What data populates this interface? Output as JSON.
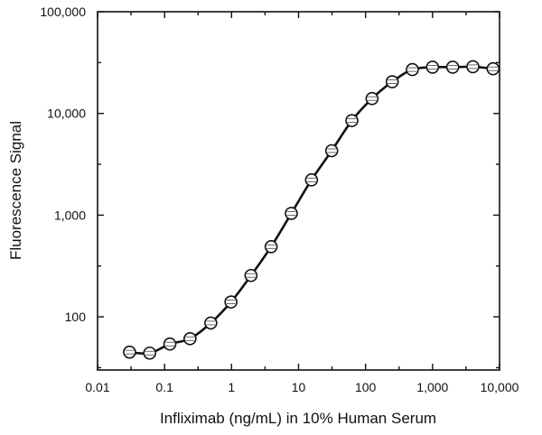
{
  "chart_data": {
    "type": "scatter",
    "title": "",
    "xlabel": "Infliximab (ng/mL) in 10% Human Serum",
    "ylabel": "Fluorescence Signal",
    "x_scale": "log",
    "y_scale": "log",
    "xlim": [
      0.01,
      10000
    ],
    "ylim": [
      30,
      100000
    ],
    "x_ticks": [
      {
        "value": 0.01,
        "label": "0.01"
      },
      {
        "value": 0.1,
        "label": "0.1"
      },
      {
        "value": 1,
        "label": "1"
      },
      {
        "value": 10,
        "label": "10"
      },
      {
        "value": 100,
        "label": "100"
      },
      {
        "value": 1000,
        "label": "1,000"
      },
      {
        "value": 10000,
        "label": "10,000"
      }
    ],
    "y_ticks": [
      {
        "value": 100,
        "label": "100"
      },
      {
        "value": 1000,
        "label": "1,000"
      },
      {
        "value": 10000,
        "label": "10,000"
      },
      {
        "value": 100000,
        "label": "100,000"
      }
    ],
    "grid": false,
    "legend": "none",
    "series": [
      {
        "x": [
          0.03,
          0.06,
          0.12,
          0.24,
          0.49,
          0.98,
          1.95,
          3.9,
          7.8,
          15.6,
          31.25,
          62.5,
          125,
          250,
          500,
          1000,
          2000,
          4000,
          8000
        ],
        "y": [
          45,
          44,
          54,
          61,
          87,
          140,
          255,
          490,
          1040,
          2220,
          4300,
          8500,
          14000,
          20500,
          27000,
          28500,
          28500,
          28800,
          27500
        ],
        "color": "#111111",
        "marker": "circle"
      }
    ]
  }
}
